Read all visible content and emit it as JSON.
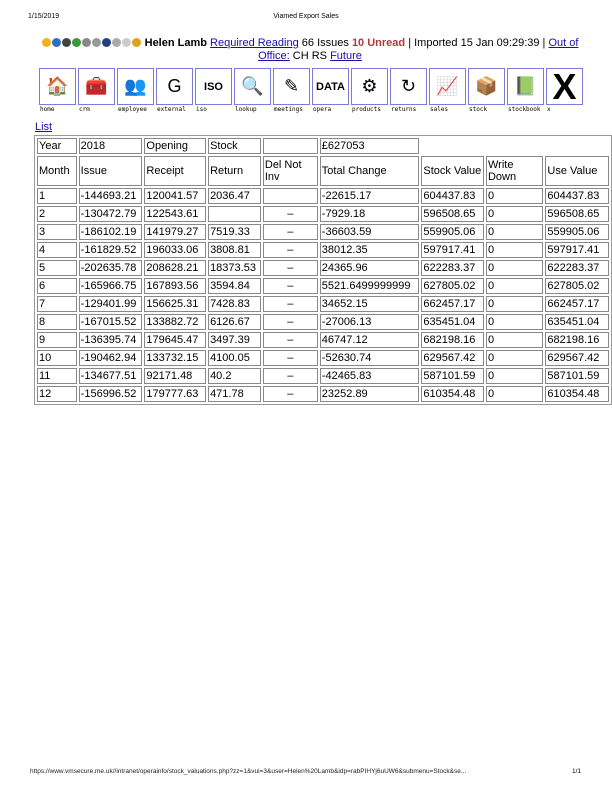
{
  "print_header": {
    "date": "1/15/2019",
    "title": "Viamed Export Sales"
  },
  "status": {
    "user": "Helen Lamb",
    "required_reading": "Required Reading",
    "issues": "66 Issues",
    "unread": "10 Unread",
    "imported": "| Imported 15 Jan 09:29:39 |",
    "out_of_office": "Out of Office:",
    "ooo_names": "CH RS",
    "future": "Future"
  },
  "nav": [
    {
      "label": "home",
      "icon": "house-icon",
      "glyph": "🏠"
    },
    {
      "label": "crm",
      "icon": "treasure-chest-icon",
      "glyph": "🧰"
    },
    {
      "label": "employee",
      "icon": "people-icon",
      "glyph": "👥"
    },
    {
      "label": "external",
      "icon": "google-icon",
      "glyph": "G"
    },
    {
      "label": "iso",
      "icon": "iso-icon",
      "glyph": "ISO"
    },
    {
      "label": "lookup",
      "icon": "magnifier-icon",
      "glyph": "🔍"
    },
    {
      "label": "meetings",
      "icon": "pencil-note-icon",
      "glyph": "✎"
    },
    {
      "label": "opera",
      "icon": "opera-data-icon",
      "glyph": "DATA"
    },
    {
      "label": "products",
      "icon": "gears-icon",
      "glyph": "⚙"
    },
    {
      "label": "returns",
      "icon": "refresh-icon",
      "glyph": "↻"
    },
    {
      "label": "sales",
      "icon": "sales-chart-icon",
      "glyph": "📈"
    },
    {
      "label": "stock",
      "icon": "box-icon",
      "glyph": "📦"
    },
    {
      "label": "stockbook",
      "icon": "book-icon",
      "glyph": "📗"
    },
    {
      "label": "x",
      "icon": "close-icon",
      "glyph": "X"
    }
  ],
  "list_link": "List",
  "summary": {
    "year_label": "Year",
    "year": "2018",
    "opening": "Opening",
    "stock": "Stock",
    "opening_value": "£627053"
  },
  "columns": [
    "Month",
    "Issue",
    "Receipt",
    "Return",
    "Del Not Inv",
    "Total Change",
    "Stock Value",
    "Write Down",
    "Use Value"
  ],
  "rows": [
    [
      "1",
      "-144693.21",
      "120041.57",
      "2036.47",
      "",
      "-22615.17",
      "604437.83",
      "0",
      "604437.83"
    ],
    [
      "2",
      "-130472.79",
      "122543.61",
      "",
      "–",
      "-7929.18",
      "596508.65",
      "0",
      "596508.65"
    ],
    [
      "3",
      "-186102.19",
      "141979.27",
      "7519.33",
      "–",
      "-36603.59",
      "559905.06",
      "0",
      "559905.06"
    ],
    [
      "4",
      "-161829.52",
      "196033.06",
      "3808.81",
      "–",
      "38012.35",
      "597917.41",
      "0",
      "597917.41"
    ],
    [
      "5",
      "-202635.78",
      "208628.21",
      "18373.53",
      "–",
      "24365.96",
      "622283.37",
      "0",
      "622283.37"
    ],
    [
      "6",
      "-165966.75",
      "167893.56",
      "3594.84",
      "–",
      "5521.6499999999",
      "627805.02",
      "0",
      "627805.02"
    ],
    [
      "7",
      "-129401.99",
      "156625.31",
      "7428.83",
      "–",
      "34652.15",
      "662457.17",
      "0",
      "662457.17"
    ],
    [
      "8",
      "-167015.52",
      "133882.72",
      "6126.67",
      "–",
      "-27006.13",
      "635451.04",
      "0",
      "635451.04"
    ],
    [
      "9",
      "-136395.74",
      "179645.47",
      "3497.39",
      "–",
      "46747.12",
      "682198.16",
      "0",
      "682198.16"
    ],
    [
      "10",
      "-190462.94",
      "133732.15",
      "4100.05",
      "–",
      "-52630.74",
      "629567.42",
      "0",
      "629567.42"
    ],
    [
      "11",
      "-134677.51",
      "92171.48",
      "40.2",
      "–",
      "-42465.83",
      "587101.59",
      "0",
      "587101.59"
    ],
    [
      "12",
      "-156996.52",
      "179777.63",
      "471.78",
      "–",
      "23252.89",
      "610354.48",
      "0",
      "610354.48"
    ]
  ],
  "footer": {
    "url": "https://www.vmsecure.me.uk//intranet/operainfo/stock_valuations.php?zz=1&vui=3&user=Helen%20Lamb&idp=rabPIHYj6uUW6&submenu=Stock&se...",
    "page": "1/1"
  }
}
